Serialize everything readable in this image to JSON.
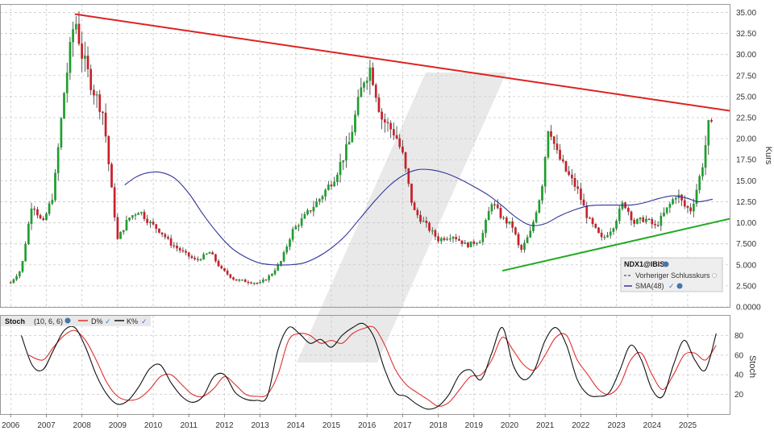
{
  "chart_data": [
    {
      "type": "candlestick",
      "symbol": "NDX1@IBIS",
      "ylabel": "Kurs",
      "ylim": [
        0,
        36
      ],
      "yticks": [
        "0.0000",
        "2.500",
        "5.000",
        "7.500",
        "10.00",
        "12.50",
        "15.00",
        "17.50",
        "20.00",
        "22.50",
        "25.00",
        "27.50",
        "30.00",
        "32.50",
        "35.00"
      ],
      "xlim": [
        2005.7,
        2026.2
      ],
      "xticks": [
        "2006",
        "2007",
        "2008",
        "2009",
        "2010",
        "2011",
        "2012",
        "2013",
        "2014",
        "2015",
        "2016",
        "2017",
        "2018",
        "2019",
        "2020",
        "2021",
        "2022",
        "2023",
        "2024",
        "2025"
      ],
      "price_keypoints": [
        [
          2006.0,
          2.9
        ],
        [
          2006.3,
          4.5
        ],
        [
          2006.6,
          12.5
        ],
        [
          2006.9,
          9.8
        ],
        [
          2007.2,
          13.5
        ],
        [
          2007.5,
          25.5
        ],
        [
          2007.8,
          34.5
        ],
        [
          2008.0,
          30.0
        ],
        [
          2008.3,
          26.0
        ],
        [
          2008.6,
          23.0
        ],
        [
          2008.8,
          15.0
        ],
        [
          2009.0,
          8.0
        ],
        [
          2009.3,
          10.5
        ],
        [
          2009.6,
          11.5
        ],
        [
          2009.9,
          10.0
        ],
        [
          2010.2,
          9.0
        ],
        [
          2010.5,
          7.5
        ],
        [
          2010.9,
          6.3
        ],
        [
          2011.2,
          5.5
        ],
        [
          2011.6,
          6.5
        ],
        [
          2011.9,
          4.5
        ],
        [
          2012.3,
          3.2
        ],
        [
          2012.7,
          3.0
        ],
        [
          2013.0,
          2.8
        ],
        [
          2013.3,
          3.8
        ],
        [
          2013.6,
          5.5
        ],
        [
          2013.9,
          9.0
        ],
        [
          2014.3,
          11.0
        ],
        [
          2014.7,
          13.0
        ],
        [
          2015.1,
          15.5
        ],
        [
          2015.5,
          19.5
        ],
        [
          2015.9,
          27.0
        ],
        [
          2016.1,
          28.5
        ],
        [
          2016.4,
          22.5
        ],
        [
          2016.8,
          20.5
        ],
        [
          2017.0,
          18.0
        ],
        [
          2017.3,
          11.5
        ],
        [
          2017.7,
          9.5
        ],
        [
          2018.0,
          8.0
        ],
        [
          2018.4,
          8.5
        ],
        [
          2018.8,
          7.3
        ],
        [
          2019.2,
          8.0
        ],
        [
          2019.5,
          12.5
        ],
        [
          2019.8,
          10.5
        ],
        [
          2020.1,
          9.5
        ],
        [
          2020.3,
          6.5
        ],
        [
          2020.6,
          9.0
        ],
        [
          2020.9,
          14.0
        ],
        [
          2021.1,
          22.0
        ],
        [
          2021.3,
          18.5
        ],
        [
          2021.6,
          16.0
        ],
        [
          2021.9,
          14.0
        ],
        [
          2022.2,
          10.5
        ],
        [
          2022.6,
          8.0
        ],
        [
          2022.9,
          9.5
        ],
        [
          2023.2,
          12.5
        ],
        [
          2023.5,
          10.0
        ],
        [
          2023.8,
          10.5
        ],
        [
          2024.1,
          9.5
        ],
        [
          2024.4,
          11.5
        ],
        [
          2024.7,
          13.5
        ],
        [
          2024.9,
          12.0
        ],
        [
          2025.1,
          11.5
        ],
        [
          2025.4,
          16.5
        ],
        [
          2025.6,
          22.0
        ],
        [
          2025.7,
          21.0
        ]
      ],
      "series": [
        {
          "name": "SMA(48)",
          "color": "#33339a",
          "points": [
            [
              2009.2,
              14.5
            ],
            [
              2009.5,
              15.4
            ],
            [
              2009.8,
              15.9
            ],
            [
              2010.2,
              16.0
            ],
            [
              2010.6,
              15.3
            ],
            [
              2011.0,
              13.5
            ],
            [
              2011.4,
              11.0
            ],
            [
              2011.8,
              8.8
            ],
            [
              2012.2,
              7.0
            ],
            [
              2012.6,
              5.9
            ],
            [
              2013.0,
              5.2
            ],
            [
              2013.4,
              5.0
            ],
            [
              2013.8,
              5.0
            ],
            [
              2014.2,
              5.2
            ],
            [
              2014.6,
              5.9
            ],
            [
              2015.0,
              7.0
            ],
            [
              2015.4,
              8.5
            ],
            [
              2015.8,
              10.5
            ],
            [
              2016.2,
              12.5
            ],
            [
              2016.6,
              14.3
            ],
            [
              2017.0,
              15.6
            ],
            [
              2017.4,
              16.3
            ],
            [
              2017.8,
              16.3
            ],
            [
              2018.2,
              15.9
            ],
            [
              2018.6,
              15.2
            ],
            [
              2019.0,
              14.3
            ],
            [
              2019.4,
              13.3
            ],
            [
              2019.8,
              12.0
            ],
            [
              2020.2,
              10.6
            ],
            [
              2020.6,
              9.7
            ],
            [
              2021.0,
              9.9
            ],
            [
              2021.4,
              10.8
            ],
            [
              2021.8,
              11.5
            ],
            [
              2022.2,
              12.0
            ],
            [
              2022.6,
              12.1
            ],
            [
              2023.0,
              12.1
            ],
            [
              2023.4,
              12.1
            ],
            [
              2023.8,
              12.4
            ],
            [
              2024.2,
              12.9
            ],
            [
              2024.6,
              13.2
            ],
            [
              2025.0,
              12.9
            ],
            [
              2025.3,
              12.5
            ],
            [
              2025.7,
              12.8
            ]
          ]
        },
        {
          "name": "Vorheriger Schlusskurs",
          "color": "#555555",
          "points": []
        }
      ],
      "annotations": {
        "resistance_line": {
          "color": "#dd2222",
          "from": [
            2007.8,
            34.8
          ],
          "to": [
            2026.2,
            23.3
          ]
        },
        "support_line": {
          "color": "#22aa22",
          "from": [
            2019.8,
            4.3
          ],
          "to": [
            2026.2,
            10.5
          ]
        }
      },
      "legend": {
        "placement": "bottom-right",
        "title": "NDX1@IBIS",
        "items": [
          "Vorheriger Schlusskurs",
          "SMA(48)"
        ]
      }
    },
    {
      "type": "line",
      "title": "Stoch",
      "params": "(10, 6, 6)",
      "ylabel": "Stoch",
      "ylim": [
        0,
        100
      ],
      "yticks": [
        "20",
        "40",
        "60",
        "80"
      ],
      "series": [
        {
          "name": "D%",
          "color": "#e03030",
          "points": [
            [
              2006.5,
              60
            ],
            [
              2006.9,
              55
            ],
            [
              2007.2,
              68
            ],
            [
              2007.5,
              80
            ],
            [
              2007.8,
              85
            ],
            [
              2008.1,
              75
            ],
            [
              2008.4,
              55
            ],
            [
              2008.7,
              32
            ],
            [
              2009.0,
              18
            ],
            [
              2009.3,
              14
            ],
            [
              2009.6,
              16
            ],
            [
              2009.9,
              25
            ],
            [
              2010.2,
              38
            ],
            [
              2010.5,
              40
            ],
            [
              2010.8,
              30
            ],
            [
              2011.1,
              20
            ],
            [
              2011.4,
              18
            ],
            [
              2011.7,
              26
            ],
            [
              2012.0,
              38
            ],
            [
              2012.3,
              30
            ],
            [
              2012.6,
              20
            ],
            [
              2012.9,
              18
            ],
            [
              2013.2,
              20
            ],
            [
              2013.5,
              40
            ],
            [
              2013.8,
              75
            ],
            [
              2014.1,
              82
            ],
            [
              2014.4,
              80
            ],
            [
              2014.7,
              72
            ],
            [
              2015.0,
              75
            ],
            [
              2015.3,
              72
            ],
            [
              2015.6,
              82
            ],
            [
              2015.9,
              87
            ],
            [
              2016.2,
              88
            ],
            [
              2016.5,
              70
            ],
            [
              2016.8,
              45
            ],
            [
              2017.1,
              30
            ],
            [
              2017.4,
              22
            ],
            [
              2017.7,
              15
            ],
            [
              2018.0,
              8
            ],
            [
              2018.3,
              12
            ],
            [
              2018.6,
              25
            ],
            [
              2018.9,
              38
            ],
            [
              2019.2,
              40
            ],
            [
              2019.5,
              55
            ],
            [
              2019.8,
              78
            ],
            [
              2020.1,
              65
            ],
            [
              2020.4,
              50
            ],
            [
              2020.7,
              45
            ],
            [
              2021.0,
              60
            ],
            [
              2021.3,
              78
            ],
            [
              2021.6,
              80
            ],
            [
              2021.9,
              55
            ],
            [
              2022.2,
              40
            ],
            [
              2022.5,
              25
            ],
            [
              2022.8,
              20
            ],
            [
              2023.1,
              30
            ],
            [
              2023.4,
              55
            ],
            [
              2023.7,
              62
            ],
            [
              2024.0,
              40
            ],
            [
              2024.3,
              25
            ],
            [
              2024.6,
              40
            ],
            [
              2024.9,
              60
            ],
            [
              2025.2,
              62
            ],
            [
              2025.5,
              55
            ],
            [
              2025.8,
              70
            ]
          ]
        },
        {
          "name": "K%",
          "color": "#111111",
          "points": [
            [
              2006.3,
              80
            ],
            [
              2006.6,
              50
            ],
            [
              2006.9,
              45
            ],
            [
              2007.2,
              65
            ],
            [
              2007.5,
              85
            ],
            [
              2007.8,
              88
            ],
            [
              2008.1,
              68
            ],
            [
              2008.4,
              40
            ],
            [
              2008.7,
              20
            ],
            [
              2009.0,
              10
            ],
            [
              2009.3,
              14
            ],
            [
              2009.6,
              28
            ],
            [
              2009.9,
              46
            ],
            [
              2010.2,
              50
            ],
            [
              2010.5,
              32
            ],
            [
              2010.8,
              18
            ],
            [
              2011.1,
              12
            ],
            [
              2011.4,
              18
            ],
            [
              2011.7,
              38
            ],
            [
              2012.0,
              40
            ],
            [
              2012.3,
              22
            ],
            [
              2012.6,
              15
            ],
            [
              2012.9,
              14
            ],
            [
              2013.2,
              18
            ],
            [
              2013.5,
              65
            ],
            [
              2013.8,
              88
            ],
            [
              2014.1,
              82
            ],
            [
              2014.4,
              72
            ],
            [
              2014.7,
              76
            ],
            [
              2015.0,
              68
            ],
            [
              2015.3,
              80
            ],
            [
              2015.6,
              88
            ],
            [
              2015.9,
              92
            ],
            [
              2016.2,
              78
            ],
            [
              2016.5,
              45
            ],
            [
              2016.8,
              22
            ],
            [
              2017.1,
              18
            ],
            [
              2017.4,
              10
            ],
            [
              2017.7,
              5
            ],
            [
              2018.0,
              8
            ],
            [
              2018.3,
              20
            ],
            [
              2018.6,
              40
            ],
            [
              2018.9,
              45
            ],
            [
              2019.2,
              35
            ],
            [
              2019.5,
              62
            ],
            [
              2019.8,
              88
            ],
            [
              2020.1,
              50
            ],
            [
              2020.4,
              35
            ],
            [
              2020.7,
              45
            ],
            [
              2021.0,
              75
            ],
            [
              2021.3,
              88
            ],
            [
              2021.6,
              70
            ],
            [
              2021.9,
              35
            ],
            [
              2022.2,
              20
            ],
            [
              2022.5,
              18
            ],
            [
              2022.8,
              22
            ],
            [
              2023.1,
              45
            ],
            [
              2023.4,
              70
            ],
            [
              2023.7,
              55
            ],
            [
              2024.0,
              25
            ],
            [
              2024.3,
              18
            ],
            [
              2024.6,
              50
            ],
            [
              2024.9,
              75
            ],
            [
              2025.2,
              55
            ],
            [
              2025.5,
              45
            ],
            [
              2025.8,
              82
            ]
          ]
        }
      ]
    }
  ]
}
